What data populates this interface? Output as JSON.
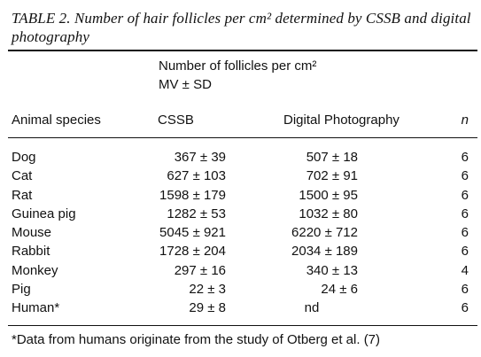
{
  "caption": "TABLE 2. Number of hair follicles per cm² determined by CSSB and digital photography",
  "header": {
    "spanner_line1": "Number of follicles per cm²",
    "spanner_line2": "MV ± SD",
    "col_animal": "Animal species",
    "col_cssb": "CSSB",
    "col_digital": "Digital Photography",
    "col_n": "n"
  },
  "rows": [
    {
      "species": "Dog",
      "cssb": "367 ± 39",
      "digital": "507 ± 18",
      "n": "6"
    },
    {
      "species": "Cat",
      "cssb": "627 ± 103",
      "digital": "702 ± 91",
      "n": "6"
    },
    {
      "species": "Rat",
      "cssb": "1598 ± 179",
      "digital": "1500 ± 95",
      "n": "6"
    },
    {
      "species": "Guinea pig",
      "cssb": "1282 ± 53",
      "digital": "1032 ± 80",
      "n": "6"
    },
    {
      "species": "Mouse",
      "cssb": "5045 ± 921",
      "digital": "6220 ± 712",
      "n": "6"
    },
    {
      "species": "Rabbit",
      "cssb": "1728 ± 204",
      "digital": "2034 ± 189",
      "n": "6"
    },
    {
      "species": "Monkey",
      "cssb": "297 ± 16",
      "digital": "340 ± 13",
      "n": "4"
    },
    {
      "species": "Pig",
      "cssb": "22 ± 3",
      "digital": "24 ± 6",
      "n": "6"
    },
    {
      "species": "Human*",
      "cssb": "29 ± 8",
      "digital": "nd",
      "n": "6"
    }
  ],
  "footnote": "*Data from humans originate from the study of Otberg et al. (7)"
}
